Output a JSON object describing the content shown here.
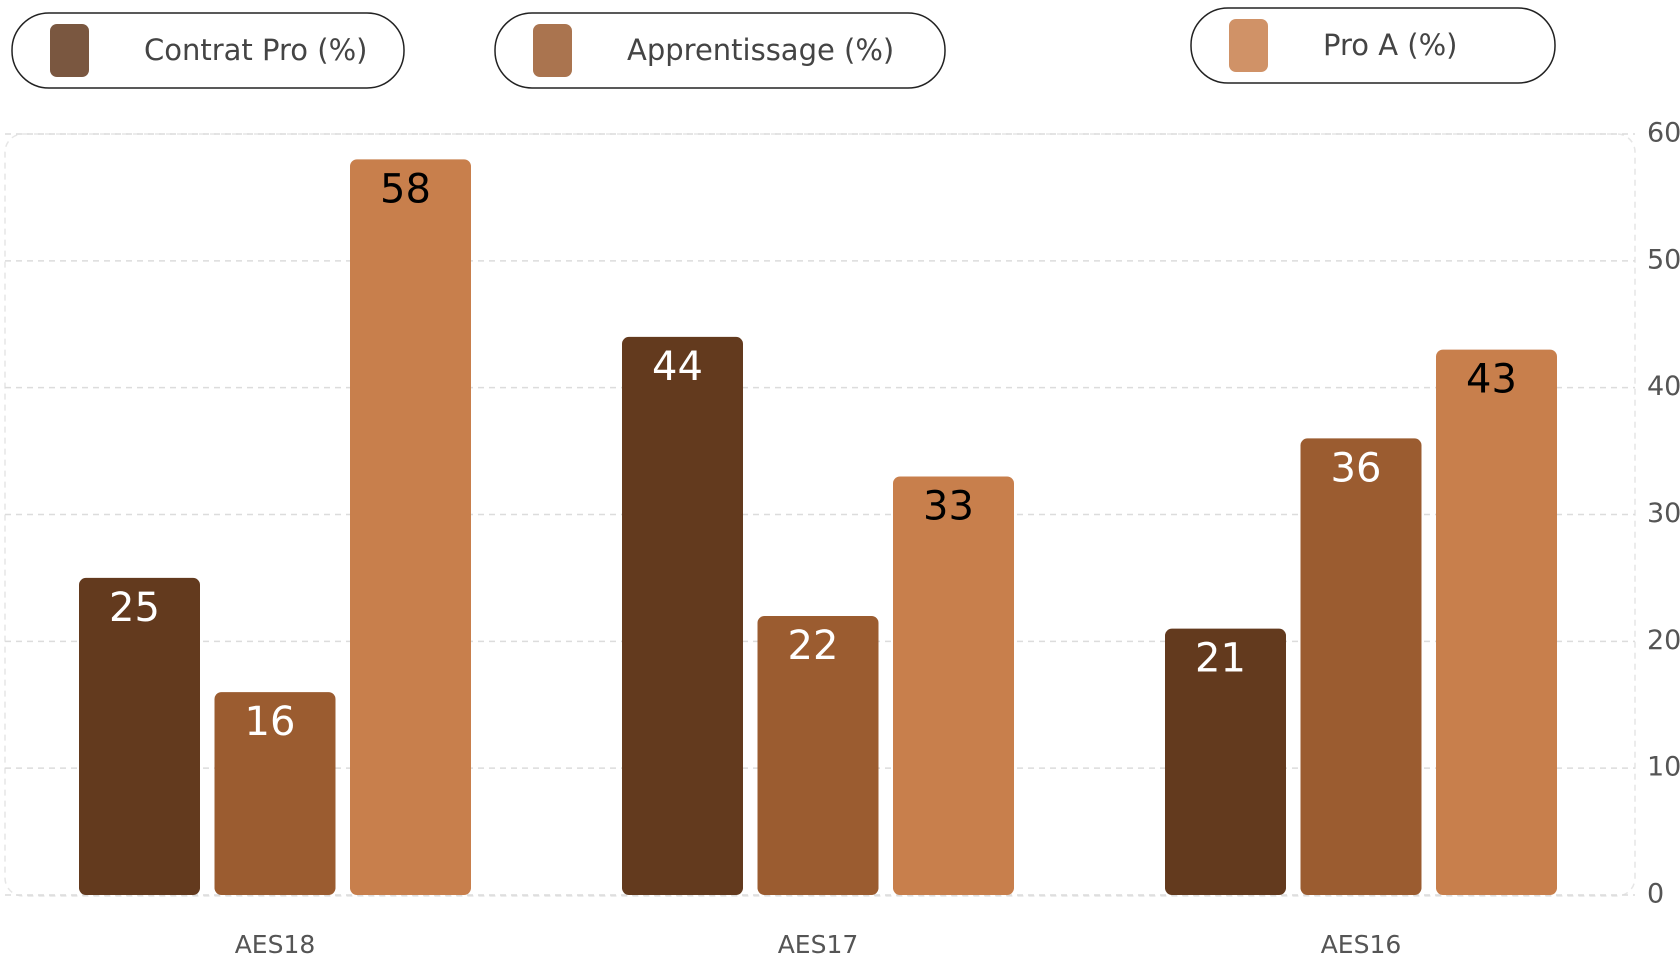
{
  "chart_data": {
    "type": "bar",
    "categories": [
      "AES18",
      "AES17",
      "AES16"
    ],
    "series": [
      {
        "name": "Contrat Pro (%)",
        "color": "#633a1e",
        "values": [
          25,
          44,
          21
        ]
      },
      {
        "name": "Apprentissage (%)",
        "color": "#9b5c30",
        "values": [
          16,
          22,
          36
        ]
      },
      {
        "name": "Pro A (%)",
        "color": "#c87f4c",
        "values": [
          58,
          33,
          43
        ]
      }
    ],
    "ylim": [
      0,
      60
    ],
    "yticks": [
      0,
      10,
      20,
      30,
      40,
      50,
      60
    ],
    "grid": true,
    "y_axis_side": "right",
    "legend": "top"
  }
}
